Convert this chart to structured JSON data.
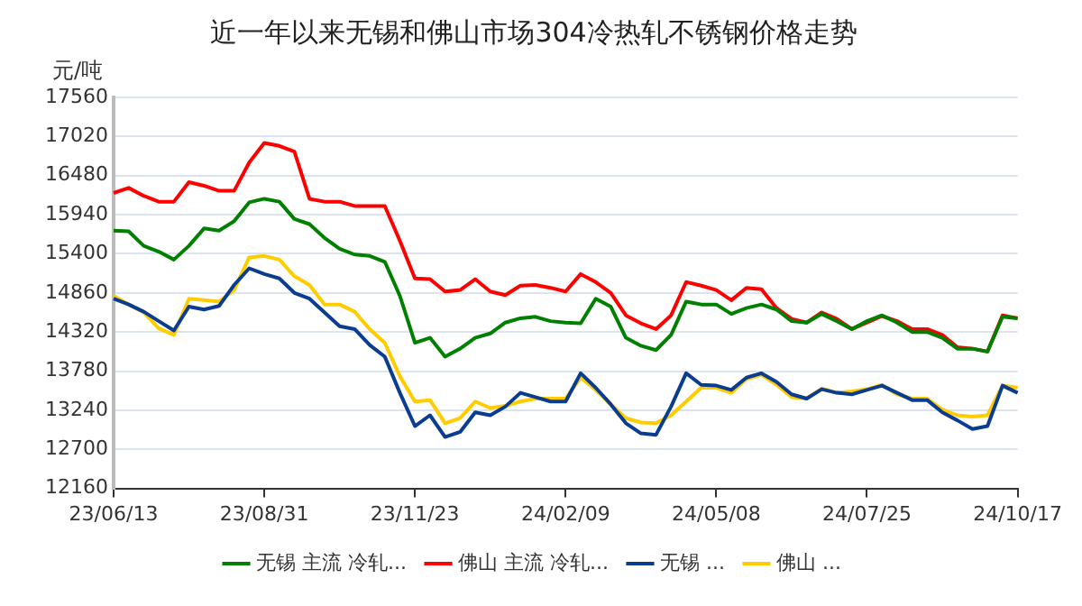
{
  "chart_data": {
    "type": "line",
    "title": "近一年以来无锡和佛山市场304冷热轧不锈钢价格走势",
    "ylabel": "元/吨",
    "categories": [
      "23/06/13",
      null,
      null,
      null,
      null,
      null,
      null,
      null,
      null,
      null,
      "23/08/31",
      null,
      null,
      null,
      null,
      null,
      null,
      null,
      null,
      null,
      "23/11/23",
      null,
      null,
      null,
      null,
      null,
      null,
      null,
      null,
      null,
      "24/02/09",
      null,
      null,
      null,
      null,
      null,
      null,
      null,
      null,
      null,
      "24/05/08",
      null,
      null,
      null,
      null,
      null,
      null,
      null,
      null,
      null,
      "24/07/25",
      null,
      null,
      null,
      null,
      null,
      null,
      null,
      null,
      null,
      "24/10/17"
    ],
    "series": [
      {
        "name": "无锡 主流 冷轧...",
        "color": "#008000",
        "values": [
          15720,
          15710,
          15510,
          15430,
          15320,
          15510,
          15750,
          15720,
          15850,
          16110,
          16160,
          16120,
          15880,
          15810,
          15620,
          15470,
          15390,
          15370,
          15290,
          14820,
          14170,
          14240,
          13980,
          14090,
          14240,
          14300,
          14450,
          14510,
          14530,
          14470,
          14450,
          14440,
          14780,
          14670,
          14240,
          14130,
          14070,
          14280,
          14740,
          14700,
          14700,
          14570,
          14650,
          14700,
          14630,
          14470,
          14450,
          14570,
          14470,
          14360,
          14470,
          14550,
          14450,
          14320,
          14320,
          14240,
          14090,
          14090,
          14050,
          14530,
          14510
        ]
      },
      {
        "name": "佛山 主流 冷轧...",
        "color": "#ff0000",
        "values": [
          16240,
          16310,
          16200,
          16120,
          16120,
          16390,
          16340,
          16270,
          16270,
          16660,
          16930,
          16890,
          16810,
          16160,
          16120,
          16120,
          16060,
          16060,
          16060,
          15580,
          15060,
          15050,
          14880,
          14900,
          15050,
          14880,
          14830,
          14960,
          14970,
          14930,
          14880,
          15120,
          15010,
          14860,
          14550,
          14440,
          14360,
          14550,
          15010,
          14960,
          14900,
          14760,
          14930,
          14910,
          14650,
          14500,
          14450,
          14590,
          14500,
          14360,
          14450,
          14540,
          14470,
          14360,
          14360,
          14280,
          14110,
          14090,
          14050,
          14550,
          14510
        ]
      },
      {
        "name": "无锡 ...",
        "color": "#0a3d8f",
        "values": [
          14780,
          14700,
          14600,
          14470,
          14340,
          14670,
          14630,
          14680,
          14970,
          15200,
          15120,
          15060,
          14860,
          14780,
          14590,
          14400,
          14360,
          14140,
          13980,
          13480,
          13020,
          13170,
          12870,
          12940,
          13210,
          13170,
          13290,
          13480,
          13420,
          13360,
          13360,
          13750,
          13550,
          13320,
          13060,
          12920,
          12900,
          13290,
          13750,
          13590,
          13580,
          13520,
          13690,
          13750,
          13630,
          13460,
          13400,
          13530,
          13480,
          13460,
          13520,
          13580,
          13480,
          13380,
          13380,
          13210,
          13100,
          12980,
          13020,
          13580,
          13480
        ]
      },
      {
        "name": "佛山 ...",
        "color": "#ffcc00",
        "values": [
          14820,
          14700,
          14590,
          14370,
          14280,
          14780,
          14760,
          14740,
          14900,
          15350,
          15370,
          15320,
          15090,
          14970,
          14700,
          14700,
          14600,
          14360,
          14170,
          13710,
          13360,
          13380,
          13060,
          13130,
          13360,
          13270,
          13300,
          13360,
          13400,
          13400,
          13400,
          13690,
          13520,
          13320,
          13130,
          13070,
          13060,
          13170,
          13360,
          13550,
          13550,
          13480,
          13670,
          13730,
          13590,
          13420,
          13400,
          13540,
          13480,
          13500,
          13530,
          13590,
          13460,
          13400,
          13400,
          13250,
          13170,
          13150,
          13170,
          13580,
          13550
        ]
      }
    ],
    "ylim": [
      12160,
      17560
    ],
    "yticks": [
      12160,
      12700,
      13240,
      13780,
      14320,
      14860,
      15400,
      15940,
      16480,
      17020,
      17560
    ],
    "grid": "y",
    "legend": "bottom",
    "marker": "none",
    "line_style": "solid"
  }
}
